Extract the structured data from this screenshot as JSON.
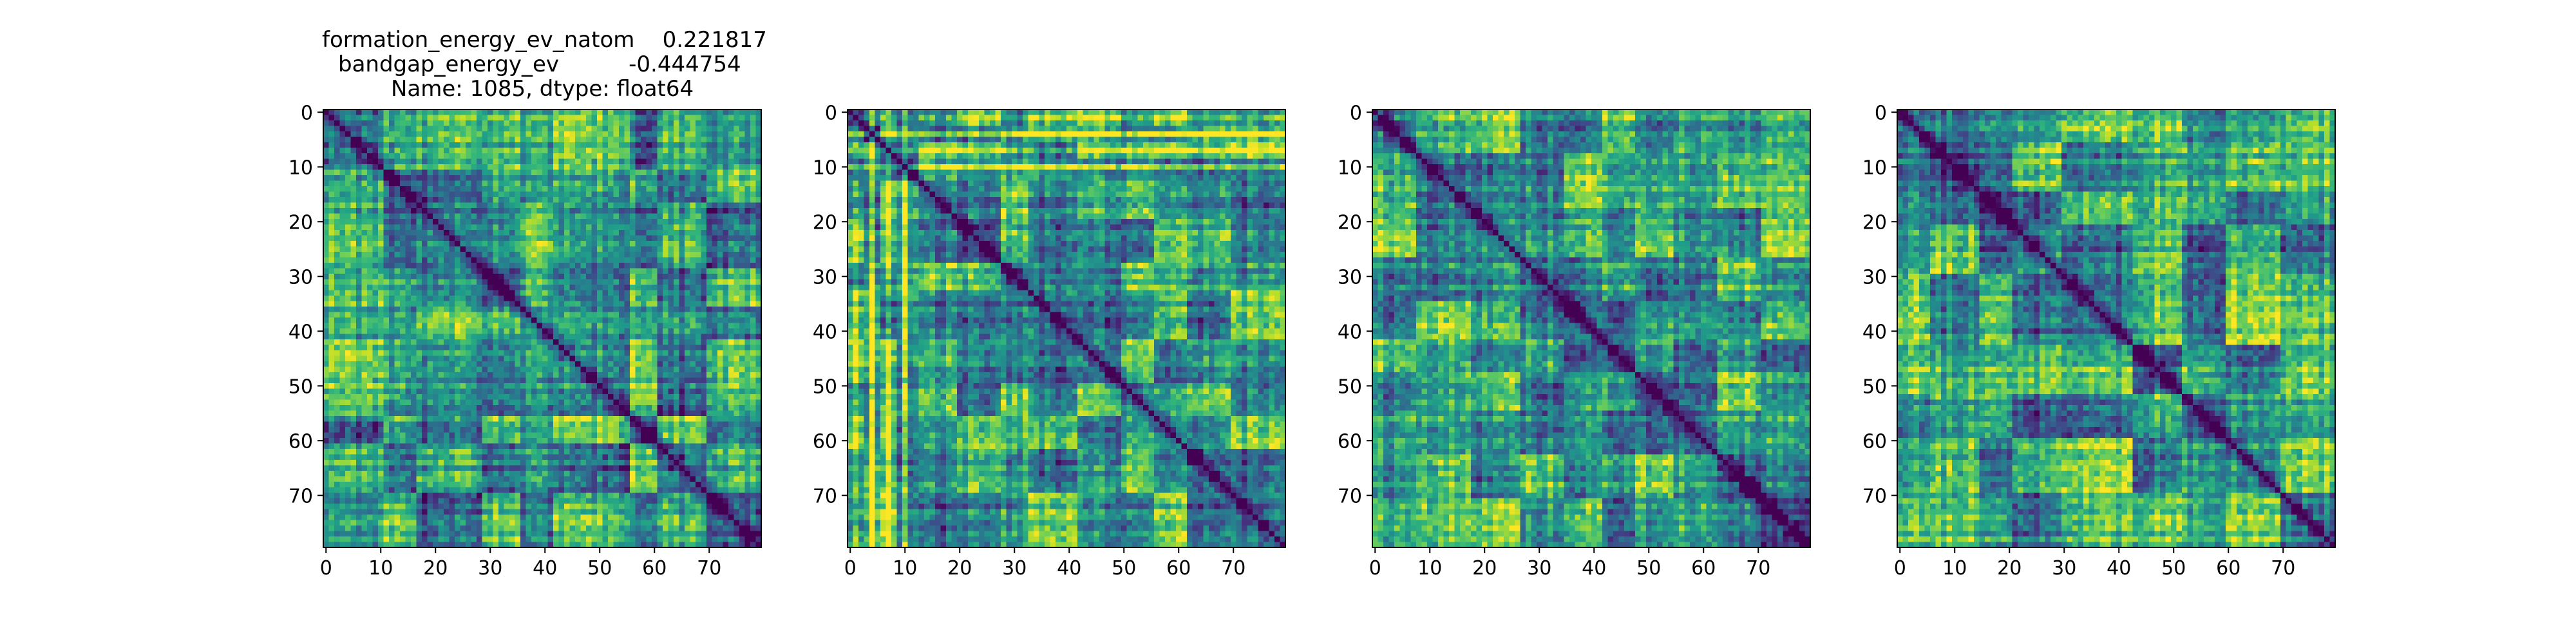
{
  "title_lines": [
    "formation_energy_ev_natom    0.221817",
    "bandgap_energy_ev          -0.444754",
    "Name: 1085, dtype: float64"
  ],
  "colormap": "viridis",
  "colormap_stops": [
    "#440154",
    "#482878",
    "#3e4989",
    "#31688e",
    "#26828e",
    "#1f9e89",
    "#35b779",
    "#6ece58",
    "#b5de2b",
    "#fde725"
  ],
  "chart_data": [
    {
      "type": "heatmap",
      "matrix_size": 80,
      "x_ticks": [
        0,
        10,
        20,
        30,
        40,
        50,
        60,
        70
      ],
      "y_ticks": [
        0,
        10,
        20,
        30,
        40,
        50,
        60,
        70
      ],
      "diagonal_value": 0,
      "block_boundaries": [
        0,
        11,
        17,
        29,
        36,
        42,
        56,
        61,
        70,
        80
      ],
      "bright_bands": [],
      "seed": 1085
    },
    {
      "type": "heatmap",
      "matrix_size": 80,
      "x_ticks": [
        0,
        10,
        20,
        30,
        40,
        50,
        60,
        70
      ],
      "y_ticks": [
        0,
        10,
        20,
        30,
        40,
        50,
        60,
        70
      ],
      "diagonal_value": 0,
      "block_boundaries": [
        0,
        3,
        6,
        9,
        13,
        20,
        28,
        33,
        42,
        50,
        56,
        62,
        70,
        80
      ],
      "bright_bands": [
        1,
        4,
        7,
        10
      ],
      "seed": 2171
    },
    {
      "type": "heatmap",
      "matrix_size": 80,
      "x_ticks": [
        0,
        10,
        20,
        30,
        40,
        50,
        60,
        70
      ],
      "y_ticks": [
        0,
        10,
        20,
        30,
        40,
        50,
        60,
        70
      ],
      "diagonal_value": 0,
      "block_boundaries": [
        0,
        8,
        18,
        27,
        35,
        42,
        48,
        55,
        63,
        71,
        80
      ],
      "bright_bands": [],
      "seed": 3257
    },
    {
      "type": "heatmap",
      "matrix_size": 80,
      "x_ticks": [
        0,
        10,
        20,
        30,
        40,
        50,
        60,
        70
      ],
      "y_ticks": [
        0,
        10,
        20,
        30,
        40,
        50,
        60,
        70
      ],
      "diagonal_value": 0,
      "block_boundaries": [
        0,
        6,
        15,
        21,
        30,
        43,
        52,
        60,
        70,
        80
      ],
      "bright_bands": [],
      "seed": 4343
    }
  ]
}
